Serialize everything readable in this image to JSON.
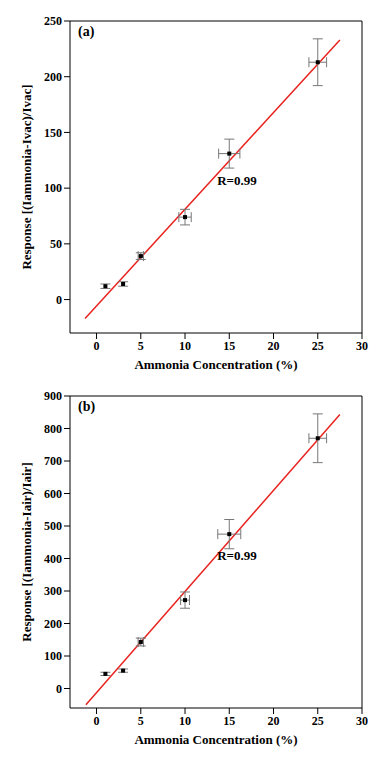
{
  "chart_data": [
    {
      "type": "scatter",
      "title": "(a)",
      "annotation": "R=0.99",
      "x_label": "Ammonia Concentration (%)",
      "y_label": "Response [(Iammonia-Ivac)/Ivac]",
      "xlim": [
        -3,
        30
      ],
      "xticks": [
        0,
        5,
        10,
        15,
        20,
        25,
        30
      ],
      "ylim": [
        -30,
        250
      ],
      "yticks": [
        0,
        50,
        100,
        150,
        200,
        250
      ],
      "series": [
        {
          "type": "scatter",
          "color": "#000000",
          "x": [
            1,
            3,
            5,
            10,
            15,
            25
          ],
          "values": [
            12,
            14,
            39,
            74,
            131,
            213
          ],
          "x_error": [
            0,
            0,
            0.3,
            0.7,
            1.2,
            1
          ],
          "y_error": [
            2,
            2,
            3,
            7,
            13,
            21
          ]
        },
        {
          "type": "line",
          "color": "#e8231f",
          "x": [
            -1.3,
            27.5
          ],
          "values": [
            -17,
            233
          ]
        }
      ]
    },
    {
      "type": "scatter",
      "title": "(b)",
      "annotation": "R=0.99",
      "x_label": "Ammonia Concentration (%)",
      "y_label": "Response [(Iammonia-Iair)/Iair]",
      "xlim": [
        -3,
        30
      ],
      "xticks": [
        0,
        5,
        10,
        15,
        20,
        25,
        30
      ],
      "ylim": [
        -60,
        900
      ],
      "yticks": [
        0,
        100,
        200,
        300,
        400,
        500,
        600,
        700,
        800,
        900
      ],
      "series": [
        {
          "type": "scatter",
          "color": "#000000",
          "x": [
            1,
            3,
            5,
            10,
            15,
            25
          ],
          "values": [
            45,
            55,
            143,
            272,
            475,
            770
          ],
          "x_error": [
            0,
            0,
            0.3,
            0.5,
            1.3,
            1
          ],
          "y_error": [
            5,
            5,
            12,
            25,
            45,
            75
          ]
        },
        {
          "type": "line",
          "color": "#e8231f",
          "x": [
            -1.2,
            27.5
          ],
          "values": [
            -50,
            843
          ]
        }
      ]
    }
  ]
}
